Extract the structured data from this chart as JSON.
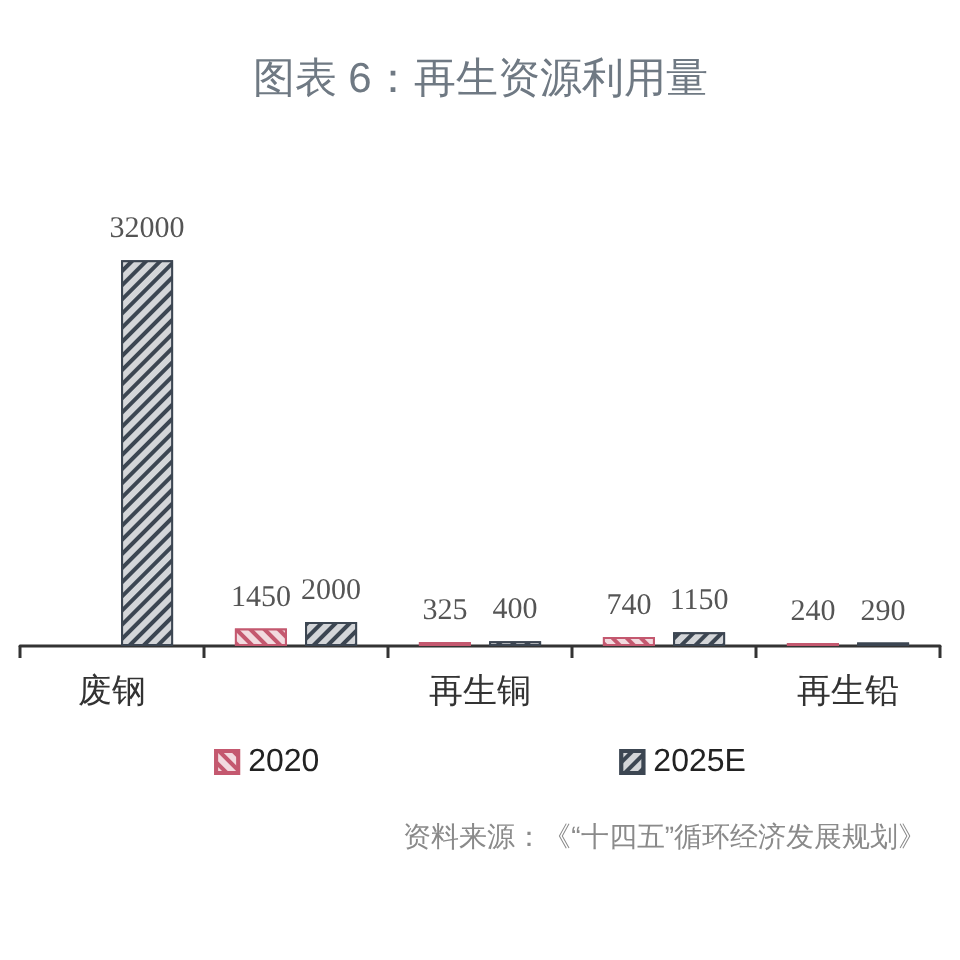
{
  "chart_data": {
    "type": "bar",
    "title": "图表 6：再生资源利用量",
    "categories": [
      "废钢",
      null,
      "再生铜",
      null,
      "再生铅"
    ],
    "series": [
      {
        "name": "2020",
        "color": "#c4586f",
        "values": [
          null,
          1450,
          325,
          740,
          240
        ]
      },
      {
        "name": "2025E",
        "color": "#3c4652",
        "values": [
          32000,
          2000,
          400,
          1150,
          290
        ]
      }
    ],
    "data_labels": true,
    "legend": "bottom",
    "annotations": [
      "资料来源：《“十四五”循环经济发展规划》"
    ]
  }
}
